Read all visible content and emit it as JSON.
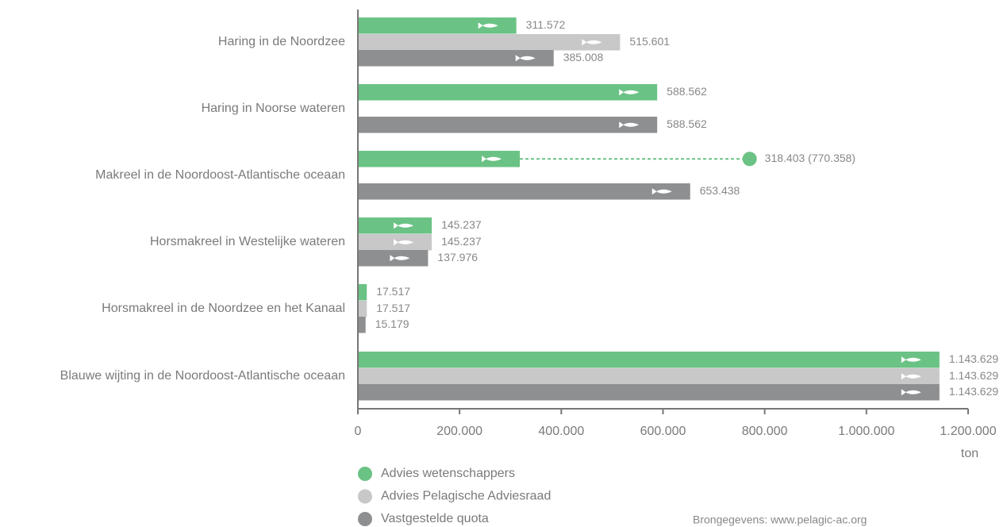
{
  "chart_data": {
    "type": "hbar",
    "categories": [
      "Haring in de Noordzee",
      "Haring in Noorse wateren",
      "Makreel in de Noordoost-Atlantische oceaan",
      "Horsmakreel in Westelijke wateren",
      "Horsmakreel in de Noordzee en het Kanaal",
      "Blauwe wijting in de Noordoost-Atlantische oceaan"
    ],
    "series": [
      {
        "name": "Advies wetenschappers",
        "color": "#6bc285",
        "values": [
          311572,
          588562,
          318403,
          145237,
          17517,
          1143629
        ],
        "value_labels": [
          "311.572",
          "588.562",
          "318.403 (770.358)",
          "145.237",
          "17.517",
          "1.143.629"
        ],
        "extended_values": [
          null,
          null,
          770358,
          null,
          null,
          null
        ]
      },
      {
        "name": "Advies Pelagische Adviesraad",
        "color": "#c8c8c8",
        "values": [
          515601,
          null,
          null,
          145237,
          17517,
          1143629
        ],
        "value_labels": [
          "515.601",
          null,
          null,
          "145.237",
          "17.517",
          "1.143.629"
        ]
      },
      {
        "name": "Vastgestelde quota",
        "color": "#8e8f91",
        "values": [
          385008,
          588562,
          653438,
          137976,
          15179,
          1143629
        ],
        "value_labels": [
          "385.008",
          "588.562",
          "653.438",
          "137.976",
          "15.179",
          "1.143.629"
        ]
      }
    ],
    "xlim": [
      0,
      1200000
    ],
    "xticks": [
      0,
      {
        "value": 200000,
        "label": "200.000"
      },
      {
        "value": 400000,
        "label": "400.000"
      },
      {
        "value": 600000,
        "label": "600.000"
      },
      {
        "value": 800000,
        "label": "800.000"
      },
      {
        "value": 1000000,
        "label": "1.000.000"
      },
      {
        "value": 1200000,
        "label": "1.200.000"
      }
    ],
    "x_label": "ton",
    "source": "Brongegevens: www.pelagic-ac.org"
  }
}
